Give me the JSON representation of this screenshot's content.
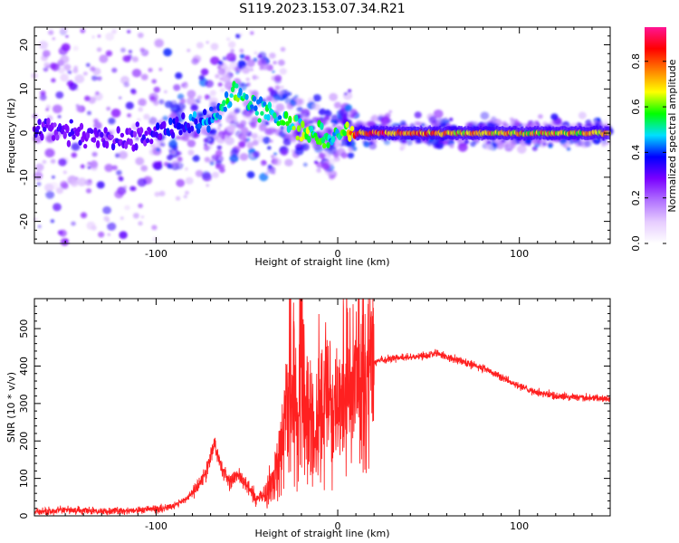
{
  "figure": {
    "title": "S119.2023.153.07.34.R21"
  },
  "chart_data": [
    {
      "type": "heatmap",
      "title": "",
      "xlabel": "Height of straight line (km)",
      "ylabel": "Frequency (Hz)",
      "xlim": [
        -167,
        150
      ],
      "ylim": [
        -25,
        24
      ],
      "x_ticks": [
        "-100",
        "0",
        "100"
      ],
      "y_ticks": [
        "-20",
        "-10",
        "0",
        "10",
        "20"
      ],
      "colorbar": {
        "label": "Normalized spectral amplitude",
        "range": [
          0,
          0.95
        ],
        "ticks": [
          "0.0",
          "0.2",
          "0.4",
          "0.6",
          "0.8"
        ],
        "colormap": [
          "#ffffff",
          "#e6ccff",
          "#b070ff",
          "#7a00ff",
          "#0000ff",
          "#00e0ff",
          "#00ff00",
          "#ffff00",
          "#ff8000",
          "#ff0000",
          "#ff1493"
        ]
      },
      "ridge": {
        "x": [
          -160,
          -140,
          -125,
          -110,
          -95,
          -80,
          -70,
          -62,
          -55,
          -48,
          -40,
          -32,
          -25,
          -15,
          -10,
          -5,
          0,
          5,
          10,
          20,
          50,
          100,
          150
        ],
        "frequency": [
          1,
          0,
          -1,
          -1,
          0,
          2,
          3,
          6,
          10,
          6,
          6,
          3,
          1,
          0,
          0,
          -2,
          -1,
          0,
          0,
          0,
          0,
          0,
          0
        ],
        "amplitude": [
          0.3,
          0.3,
          0.3,
          0.3,
          0.35,
          0.4,
          0.45,
          0.5,
          0.55,
          0.5,
          0.5,
          0.5,
          0.55,
          0.6,
          0.55,
          0.5,
          0.5,
          0.7,
          0.8,
          0.85,
          0.75,
          0.7,
          0.7
        ]
      }
    },
    {
      "type": "line",
      "title": "",
      "xlabel": "Height of straight line (km)",
      "ylabel": "SNR (10 * v/v)",
      "xlim": [
        -167,
        150
      ],
      "ylim": [
        0,
        580
      ],
      "x_ticks": [
        "-100",
        "0",
        "100"
      ],
      "y_ticks": [
        "0",
        "100",
        "200",
        "300",
        "400",
        "500"
      ],
      "color": "#ff2020",
      "series": [
        {
          "x": [
            -167,
            -150,
            -130,
            -110,
            -95,
            -85,
            -78,
            -72,
            -68,
            -65,
            -60,
            -55,
            -50,
            -45,
            -40,
            -35,
            -30,
            -28,
            -25,
            -22,
            -20,
            -18,
            -15,
            -12,
            -10,
            -8,
            -5,
            -3,
            0,
            3,
            6,
            10,
            15,
            20,
            25,
            30,
            40,
            50,
            55,
            60,
            70,
            80,
            90,
            100,
            110,
            120,
            130,
            140,
            150
          ],
          "y": [
            10,
            15,
            12,
            15,
            20,
            40,
            70,
            120,
            200,
            140,
            90,
            110,
            80,
            40,
            60,
            100,
            200,
            320,
            440,
            200,
            580,
            300,
            250,
            200,
            330,
            250,
            370,
            260,
            300,
            340,
            370,
            360,
            390,
            410,
            415,
            420,
            425,
            430,
            435,
            425,
            410,
            395,
            370,
            345,
            330,
            320,
            318,
            315,
            312
          ]
        }
      ]
    }
  ]
}
